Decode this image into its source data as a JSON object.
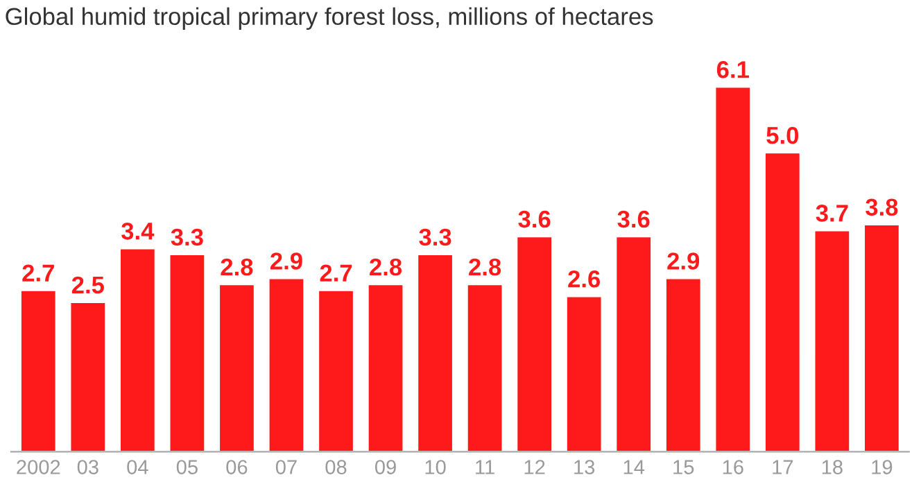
{
  "chart_data": {
    "type": "bar",
    "title": "Global humid tropical primary forest loss, millions of hectares",
    "categories": [
      "2002",
      "03",
      "04",
      "05",
      "06",
      "07",
      "08",
      "09",
      "10",
      "11",
      "12",
      "13",
      "14",
      "15",
      "16",
      "17",
      "18",
      "19"
    ],
    "values": [
      2.7,
      2.5,
      3.4,
      3.3,
      2.8,
      2.9,
      2.7,
      2.8,
      3.3,
      2.8,
      3.6,
      2.6,
      3.6,
      2.9,
      6.1,
      5.0,
      3.7,
      3.8
    ],
    "value_labels": [
      "2.7",
      "2.5",
      "3.4",
      "3.3",
      "2.8",
      "2.9",
      "2.7",
      "2.8",
      "3.3",
      "2.8",
      "3.6",
      "2.6",
      "3.6",
      "2.9",
      "6.1",
      "5.0",
      "3.7",
      "3.8"
    ],
    "color": "#fe1a1a",
    "grid": false,
    "legend": false
  }
}
